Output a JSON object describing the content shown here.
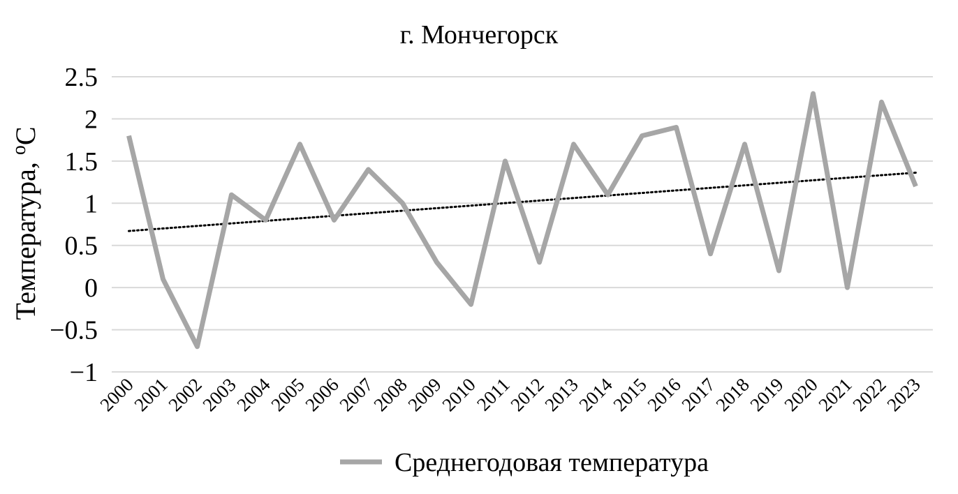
{
  "chart_data": {
    "type": "line",
    "title": "г. Мончегорск",
    "ylabel": "Температура, °C",
    "ylabel_main": "Температура, ",
    "ylabel_sup": "o",
    "ylabel_unit": "C",
    "xlabel": "",
    "ylim": [
      -1,
      2.5
    ],
    "yticks": [
      2.5,
      2,
      1.5,
      1,
      0.5,
      0,
      -0.5,
      -1
    ],
    "ytick_labels": [
      "2.5",
      "2",
      "1.5",
      "1",
      "0.5",
      "0",
      "−0.5",
      "−1"
    ],
    "grid": true,
    "legend_position": "bottom",
    "categories": [
      "2000",
      "2001",
      "2002",
      "2003",
      "2004",
      "2005",
      "2006",
      "2007",
      "2008",
      "2009",
      "2010",
      "2011",
      "2012",
      "2013",
      "2014",
      "2015",
      "2016",
      "2017",
      "2018",
      "2019",
      "2020",
      "2021",
      "2022",
      "2023"
    ],
    "series": [
      {
        "name": "Среднегодовая температура",
        "color": "#a6a6a6",
        "values": [
          1.8,
          0.1,
          -0.7,
          1.1,
          0.8,
          1.7,
          0.8,
          1.4,
          1.0,
          0.3,
          -0.2,
          1.5,
          0.3,
          1.7,
          1.1,
          1.8,
          1.9,
          0.4,
          1.7,
          0.2,
          2.3,
          0.0,
          2.2,
          1.2
        ]
      }
    ],
    "trendline": {
      "type": "linear",
      "style": "dotted",
      "color": "#000000"
    }
  }
}
